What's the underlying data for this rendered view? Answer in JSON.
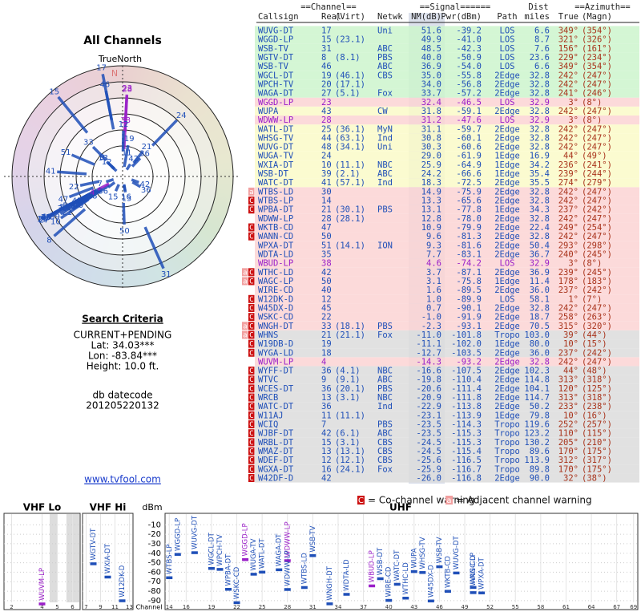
{
  "polar": {
    "title": "All Channels",
    "north_label": "TrueNorth",
    "n": "N"
  },
  "criteria": {
    "title": "Search Criteria",
    "lines": [
      "CURRENT+PENDING",
      "Lat: 34.03***",
      "Lon: -83.84***",
      "Height: 10.0 ft."
    ],
    "db_label": "db datecode",
    "db_code": "201205220132",
    "link": "www.tvfool.com"
  },
  "colors": {
    "text": "#1f4fb8",
    "az": "#a8321a",
    "nm_shade": "#9aa8c8"
  },
  "table": {
    "header1": [
      {
        "text": "==Channel==",
        "col": "real"
      },
      {
        "text": "==Signal======",
        "col": "pwr"
      },
      {
        "text": "Dist",
        "col": "dist"
      },
      {
        "text": "==Azimuth==",
        "col": "az"
      }
    ],
    "header2": {
      "cs": "Callsign",
      "real": "Real",
      "virt": "(Virt)",
      "net": "Netwk",
      "nm": "NM(dB)",
      "pwr": "Pwr(dBm)",
      "path": "Path",
      "dist": "miles",
      "az": "True",
      "magn": "(Magn)"
    },
    "rows": [
      {
        "cs": "WUVG-DT",
        "real": "17",
        "net": "Uni",
        "nm": "51.6",
        "pwr": "-39.2",
        "path": "LOS",
        "dist": "6.6",
        "az": "349°",
        "magn": "(354°)",
        "bg": "#ccf5cc"
      },
      {
        "cs": "WGGD-LP",
        "real": "15",
        "virt": "(23.1)",
        "nm": "49.9",
        "pwr": "-41.0",
        "path": "LOS",
        "dist": "8.7",
        "az": "321°",
        "magn": "(326°)",
        "bg": "#ccf5cc"
      },
      {
        "cs": "WSB-TV",
        "real": "31",
        "net": "ABC",
        "nm": "48.5",
        "pwr": "-42.3",
        "path": "LOS",
        "dist": "7.6",
        "az": "156°",
        "magn": "(161°)",
        "bg": "#ccf5cc"
      },
      {
        "cs": "WGTV-DT",
        "real": "8",
        "virt": "(8.1)",
        "net": "PBS",
        "nm": "40.0",
        "pwr": "-50.9",
        "path": "LOS",
        "dist": "23.6",
        "az": "229°",
        "magn": "(234°)",
        "bg": "#ccf5cc"
      },
      {
        "cs": "WSB-TV",
        "real": "46",
        "net": "ABC",
        "nm": "36.9",
        "pwr": "-54.0",
        "path": "LOS",
        "dist": "6.6",
        "az": "349°",
        "magn": "(354°)",
        "bg": "#ccf5cc"
      },
      {
        "cs": "WGCL-DT",
        "real": "19",
        "virt": "(46.1)",
        "net": "CBS",
        "nm": "35.0",
        "pwr": "-55.8",
        "path": "2Edge",
        "dist": "32.8",
        "az": "242°",
        "magn": "(247°)",
        "bg": "#ccf5cc"
      },
      {
        "cs": "WPCH-TV",
        "real": "20",
        "virt": "(17.1)",
        "nm": "34.0",
        "pwr": "-56.8",
        "path": "2Edge",
        "dist": "32.8",
        "az": "242°",
        "magn": "(247°)",
        "bg": "#ccf5cc"
      },
      {
        "cs": "WAGA-DT",
        "real": "27",
        "virt": "(5.1)",
        "net": "Fox",
        "nm": "33.7",
        "pwr": "-57.2",
        "path": "2Edge",
        "dist": "32.8",
        "az": "241°",
        "magn": "(246°)",
        "bg": "#ccf5cc"
      },
      {
        "cs": "WGGD-LP",
        "real": "23",
        "nm": "32.4",
        "pwr": "-46.5",
        "path": "LOS",
        "dist": "32.9",
        "az": "3°",
        "magn": "(8°)",
        "bg": "#fcd4d4",
        "color": "#9a1ec8"
      },
      {
        "cs": "WUPA",
        "real": "43",
        "net": "CW",
        "nm": "31.8",
        "pwr": "-59.1",
        "path": "2Edge",
        "dist": "32.8",
        "az": "242°",
        "magn": "(247°)",
        "bg": "#fafac8"
      },
      {
        "cs": "WDWW-LP",
        "real": "28",
        "nm": "31.2",
        "pwr": "-47.6",
        "path": "LOS",
        "dist": "32.9",
        "az": "3°",
        "magn": "(8°)",
        "bg": "#fcd4d4",
        "color": "#9a1ec8"
      },
      {
        "cs": "WATL-DT",
        "real": "25",
        "virt": "(36.1)",
        "net": "MyN",
        "nm": "31.1",
        "pwr": "-59.7",
        "path": "2Edge",
        "dist": "32.8",
        "az": "242°",
        "magn": "(247°)",
        "bg": "#fafac8"
      },
      {
        "cs": "WHSG-TV",
        "real": "44",
        "virt": "(63.1)",
        "net": "Ind",
        "nm": "30.8",
        "pwr": "-60.1",
        "path": "2Edge",
        "dist": "32.8",
        "az": "242°",
        "magn": "(247°)",
        "bg": "#fafac8"
      },
      {
        "cs": "WUVG-DT",
        "real": "48",
        "virt": "(34.1)",
        "net": "Uni",
        "nm": "30.3",
        "pwr": "-60.6",
        "path": "2Edge",
        "dist": "32.8",
        "az": "242°",
        "magn": "(247°)",
        "bg": "#fafac8"
      },
      {
        "cs": "WUGA-TV",
        "real": "24",
        "nm": "29.0",
        "pwr": "-61.9",
        "path": "1Edge",
        "dist": "16.9",
        "az": "44°",
        "magn": "(49°)",
        "bg": "#fafac8"
      },
      {
        "cs": "WXIA-DT",
        "real": "10",
        "virt": "(11.1)",
        "net": "NBC",
        "nm": "25.9",
        "pwr": "-64.9",
        "path": "1Edge",
        "dist": "34.2",
        "az": "236°",
        "magn": "(241°)",
        "bg": "#fafac8"
      },
      {
        "cs": "WSB-DT",
        "real": "39",
        "virt": "(2.1)",
        "net": "ABC",
        "nm": "24.2",
        "pwr": "-66.6",
        "path": "1Edge",
        "dist": "35.4",
        "az": "239°",
        "magn": "(244°)",
        "bg": "#fafac8"
      },
      {
        "cs": "WATC-DT",
        "real": "41",
        "virt": "(57.1)",
        "net": "Ind",
        "nm": "18.3",
        "pwr": "-72.5",
        "path": "2Edge",
        "dist": "35.5",
        "az": "274°",
        "magn": "(279°)",
        "bg": "#fafac8"
      },
      {
        "cs": "WTBS-LD",
        "real": "30",
        "nm": "14.9",
        "pwr": "-75.9",
        "path": "2Edge",
        "dist": "32.8",
        "az": "242°",
        "magn": "(247°)",
        "bg": "#fcd4d4",
        "flags": [
          "a"
        ]
      },
      {
        "cs": "WTBS-LP",
        "real": "14",
        "nm": "13.3",
        "pwr": "-65.6",
        "path": "2Edge",
        "dist": "32.8",
        "az": "242°",
        "magn": "(247°)",
        "bg": "#fcd4d4",
        "flags": [
          "C"
        ]
      },
      {
        "cs": "WPBA-DT",
        "real": "21",
        "virt": "(30.1)",
        "net": "PBS",
        "nm": "13.1",
        "pwr": "-77.8",
        "path": "1Edge",
        "dist": "34.3",
        "az": "237°",
        "magn": "(242°)",
        "bg": "#fcd4d4",
        "flags": [
          "C"
        ]
      },
      {
        "cs": "WDWW-LP",
        "real": "28",
        "virt": "(28.1)",
        "nm": "12.8",
        "pwr": "-78.0",
        "path": "2Edge",
        "dist": "32.8",
        "az": "242°",
        "magn": "(247°)",
        "bg": "#fcd4d4"
      },
      {
        "cs": "WKTB-CD",
        "real": "47",
        "nm": "10.9",
        "pwr": "-79.9",
        "path": "2Edge",
        "dist": "22.4",
        "az": "249°",
        "magn": "(254°)",
        "bg": "#fcd4d4",
        "flags": [
          "C"
        ]
      },
      {
        "cs": "WANN-CD",
        "real": "50",
        "nm": "9.6",
        "pwr": "-81.3",
        "path": "2Edge",
        "dist": "32.8",
        "az": "242°",
        "magn": "(247°)",
        "bg": "#fcd4d4",
        "flags": [
          "C"
        ]
      },
      {
        "cs": "WPXA-DT",
        "real": "51",
        "virt": "(14.1)",
        "net": "ION",
        "nm": "9.3",
        "pwr": "-81.6",
        "path": "2Edge",
        "dist": "50.4",
        "az": "293°",
        "magn": "(298°)",
        "bg": "#fcd4d4"
      },
      {
        "cs": "WDTA-LD",
        "real": "35",
        "nm": "7.7",
        "pwr": "-83.1",
        "path": "2Edge",
        "dist": "36.7",
        "az": "240°",
        "magn": "(245°)",
        "bg": "#fcd4d4"
      },
      {
        "cs": "WBUD-LP",
        "real": "38",
        "nm": "4.6",
        "pwr": "-74.2",
        "path": "LOS",
        "dist": "32.9",
        "az": "3°",
        "magn": "(8°)",
        "bg": "#fcd4d4",
        "color": "#9a1ec8"
      },
      {
        "cs": "WTHC-LD",
        "real": "42",
        "nm": "3.7",
        "pwr": "-87.1",
        "path": "2Edge",
        "dist": "36.9",
        "az": "239°",
        "magn": "(245°)",
        "bg": "#fcd4d4",
        "flags": [
          "a",
          "C"
        ]
      },
      {
        "cs": "WAGC-LP",
        "real": "50",
        "nm": "3.1",
        "pwr": "-75.8",
        "path": "1Edge",
        "dist": "11.4",
        "az": "178°",
        "magn": "(183°)",
        "bg": "#fcd4d4",
        "flags": [
          "a",
          "C"
        ]
      },
      {
        "cs": "WIRE-CD",
        "real": "40",
        "nm": "1.6",
        "pwr": "-89.5",
        "path": "2Edge",
        "dist": "36.0",
        "az": "237°",
        "magn": "(242°)",
        "bg": "#fcd4d4"
      },
      {
        "cs": "W12DK-D",
        "real": "12",
        "nm": "1.0",
        "pwr": "-89.9",
        "path": "LOS",
        "dist": "58.1",
        "az": "1°",
        "magn": "(7°)",
        "bg": "#fcd4d4",
        "flags": [
          "C"
        ]
      },
      {
        "cs": "W45DX-D",
        "real": "45",
        "nm": "0.7",
        "pwr": "-90.1",
        "path": "2Edge",
        "dist": "32.8",
        "az": "242°",
        "magn": "(247°)",
        "bg": "#fcd4d4",
        "flags": [
          "C"
        ]
      },
      {
        "cs": "WSKC-CD",
        "real": "22",
        "nm": "-1.0",
        "pwr": "-91.9",
        "path": "2Edge",
        "dist": "18.7",
        "az": "258°",
        "magn": "(263°)",
        "bg": "#fcd4d4",
        "flags": [
          "C"
        ]
      },
      {
        "cs": "WNGH-DT",
        "real": "33",
        "virt": "(18.1)",
        "net": "PBS",
        "nm": "-2.3",
        "pwr": "-93.1",
        "path": "2Edge",
        "dist": "70.5",
        "az": "315°",
        "magn": "(320°)",
        "bg": "#fcd4d4",
        "flags": [
          "a",
          "C"
        ]
      },
      {
        "cs": "WHNS",
        "real": "21",
        "virt": "(21.1)",
        "net": "Fox",
        "nm": "-11.0",
        "pwr": "-101.8",
        "path": "Tropo",
        "dist": "103.0",
        "az": "39°",
        "magn": "(44°)",
        "bg": "#dcdcdc",
        "flags": [
          "a",
          "C"
        ]
      },
      {
        "cs": "W19DB-D",
        "real": "19",
        "nm": "-11.1",
        "pwr": "-102.0",
        "path": "1Edge",
        "dist": "80.0",
        "az": "10°",
        "magn": "(15°)",
        "bg": "#dcdcdc",
        "flags": [
          "C"
        ]
      },
      {
        "cs": "WYGA-LD",
        "real": "18",
        "nm": "-12.7",
        "pwr": "-103.5",
        "path": "2Edge",
        "dist": "36.0",
        "az": "237°",
        "magn": "(242°)",
        "bg": "#dcdcdc",
        "flags": [
          "C"
        ]
      },
      {
        "cs": "WUVM-LP",
        "real": "4",
        "nm": "-14.3",
        "pwr": "-93.2",
        "path": "2Edge",
        "dist": "32.8",
        "az": "242°",
        "magn": "(247°)",
        "bg": "#fcd4d4",
        "color": "#9a1ec8"
      },
      {
        "cs": "WYFF-DT",
        "real": "36",
        "virt": "(4.1)",
        "net": "NBC",
        "nm": "-16.6",
        "pwr": "-107.5",
        "path": "2Edge",
        "dist": "102.3",
        "az": "44°",
        "magn": "(48°)",
        "bg": "#dcdcdc",
        "flags": [
          "C"
        ]
      },
      {
        "cs": "WTVC",
        "real": "9",
        "virt": "(9.1)",
        "net": "ABC",
        "nm": "-19.8",
        "pwr": "-110.4",
        "path": "2Edge",
        "dist": "114.8",
        "az": "313°",
        "magn": "(318°)",
        "bg": "#dcdcdc",
        "flags": [
          "C"
        ]
      },
      {
        "cs": "WCES-DT",
        "real": "36",
        "virt": "(20.1)",
        "net": "PBS",
        "nm": "-20.6",
        "pwr": "-111.4",
        "path": "2Edge",
        "dist": "104.1",
        "az": "120°",
        "magn": "(125°)",
        "bg": "#dcdcdc",
        "flags": [
          "C"
        ]
      },
      {
        "cs": "WRCB",
        "real": "13",
        "virt": "(3.1)",
        "net": "NBC",
        "nm": "-20.9",
        "pwr": "-111.8",
        "path": "2Edge",
        "dist": "114.7",
        "az": "313°",
        "magn": "(318°)",
        "bg": "#dcdcdc",
        "flags": [
          "C"
        ]
      },
      {
        "cs": "WATC-DT",
        "real": "36",
        "net": "Ind",
        "nm": "-22.9",
        "pwr": "-113.8",
        "path": "2Edge",
        "dist": "50.2",
        "az": "233°",
        "magn": "(238°)",
        "bg": "#dcdcdc",
        "flags": [
          "C"
        ]
      },
      {
        "cs": "W11AJ",
        "real": "11",
        "virt": "(11.1)",
        "nm": "-23.1",
        "pwr": "-113.9",
        "path": "1Edge",
        "dist": "79.8",
        "az": "10°",
        "magn": "(16°)",
        "bg": "#dcdcdc",
        "flags": [
          "C"
        ]
      },
      {
        "cs": "WCIQ",
        "real": "7",
        "net": "PBS",
        "nm": "-23.5",
        "pwr": "-114.3",
        "path": "Tropo",
        "dist": "119.6",
        "az": "252°",
        "magn": "(257°)",
        "bg": "#dcdcdc",
        "flags": [
          "C"
        ]
      },
      {
        "cs": "WJBF-DT",
        "real": "42",
        "virt": "(6.1)",
        "net": "ABC",
        "nm": "-23.5",
        "pwr": "-115.3",
        "path": "Tropo",
        "dist": "123.2",
        "az": "110°",
        "magn": "(115°)",
        "bg": "#dcdcdc",
        "flags": [
          "C"
        ]
      },
      {
        "cs": "WRBL-DT",
        "real": "15",
        "virt": "(3.1)",
        "net": "CBS",
        "nm": "-24.5",
        "pwr": "-115.3",
        "path": "Tropo",
        "dist": "130.2",
        "az": "205°",
        "magn": "(210°)",
        "bg": "#dcdcdc",
        "flags": [
          "C"
        ]
      },
      {
        "cs": "WMAZ-DT",
        "real": "13",
        "virt": "(13.1)",
        "net": "CBS",
        "nm": "-24.5",
        "pwr": "-115.4",
        "path": "Tropo",
        "dist": "89.6",
        "az": "170°",
        "magn": "(175°)",
        "bg": "#dcdcdc",
        "flags": [
          "C"
        ]
      },
      {
        "cs": "WDEF-DT",
        "real": "12",
        "virt": "(12.1)",
        "net": "CBS",
        "nm": "-25.6",
        "pwr": "-116.5",
        "path": "Tropo",
        "dist": "113.9",
        "az": "312°",
        "magn": "(317°)",
        "bg": "#dcdcdc",
        "flags": [
          "C"
        ]
      },
      {
        "cs": "WGXA-DT",
        "real": "16",
        "virt": "(24.1)",
        "net": "Fox",
        "nm": "-25.9",
        "pwr": "-116.7",
        "path": "Tropo",
        "dist": "89.8",
        "az": "170°",
        "magn": "(175°)",
        "bg": "#dcdcdc",
        "flags": [
          "C"
        ]
      },
      {
        "cs": "W42DF-D",
        "real": "42",
        "nm": "-26.0",
        "pwr": "-116.8",
        "path": "2Edge",
        "dist": "90.0",
        "az": "32°",
        "magn": "(38°)",
        "bg": "#dcdcdc",
        "flags": [
          "C"
        ]
      }
    ]
  },
  "legend": [
    {
      "glyph": "C",
      "color": "#cc1111",
      "text": "= Co-channel warning"
    },
    {
      "glyph": "a",
      "color": "#f2a0a0",
      "text": "= Adjacent channel warning"
    }
  ],
  "spectrum": {
    "ylabel": "dBm",
    "xlabel": "Channel",
    "ylim": [
      -96,
      -3
    ],
    "yticks": [
      -10,
      -20,
      -30,
      -40,
      -50,
      -60,
      -70,
      -80,
      -90
    ],
    "panels": [
      {
        "title": "VHF Lo",
        "xlim": [
          1.5,
          6.5
        ],
        "xticks": [
          2,
          4,
          5,
          6
        ]
      },
      {
        "title": "VHF Hi",
        "xlim": [
          6.5,
          13.5
        ],
        "xticks": [
          7,
          9,
          11,
          13
        ]
      },
      {
        "title": "UHF",
        "xlim": [
          13.5,
          69.5
        ],
        "xticks": [
          14,
          16,
          19,
          22,
          25,
          28,
          31,
          34,
          37,
          40,
          43,
          46,
          49,
          52,
          55,
          58,
          61,
          64,
          67,
          69
        ]
      }
    ]
  }
}
